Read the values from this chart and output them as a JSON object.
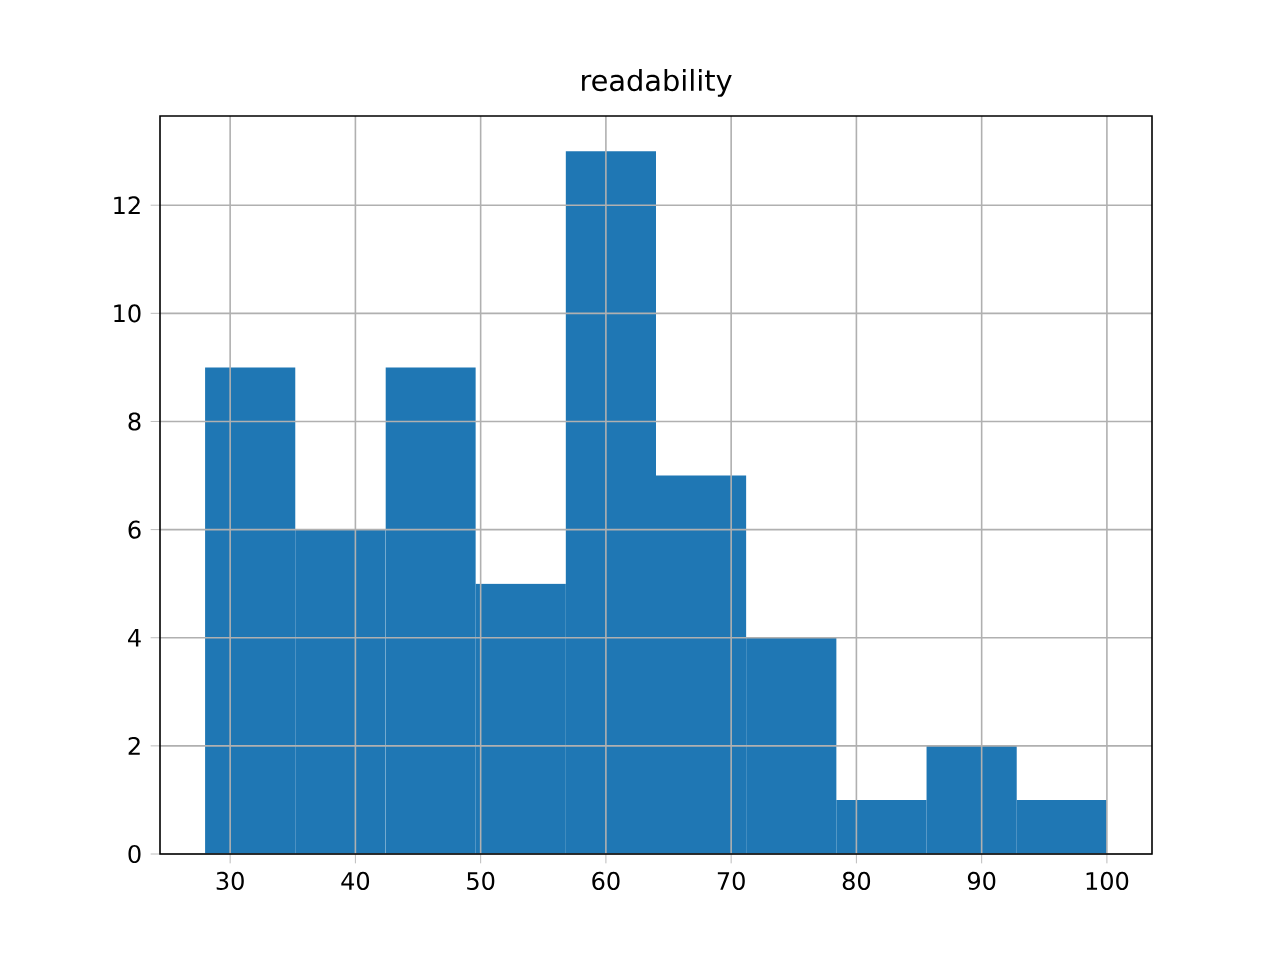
{
  "chart_data": {
    "type": "histogram",
    "title": "readability",
    "bins": [
      28,
      35.2,
      42.4,
      49.6,
      56.8,
      64,
      71.2,
      78.4,
      85.6,
      92.8,
      100
    ],
    "values": [
      9,
      6,
      9,
      5,
      13,
      7,
      4,
      1,
      2,
      1
    ],
    "color": "#1f77b4",
    "xlim": [
      24.4,
      103.6
    ],
    "ylim": [
      0,
      13.65
    ],
    "xticks": [
      30,
      40,
      50,
      60,
      70,
      80,
      90,
      100
    ],
    "yticks": [
      0,
      2,
      4,
      6,
      8,
      10,
      12
    ],
    "grid": true
  }
}
